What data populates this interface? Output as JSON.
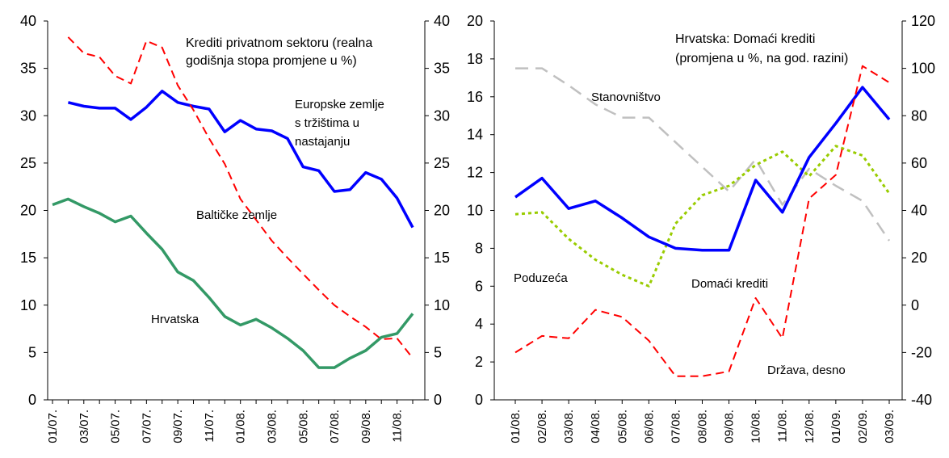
{
  "chart_data": [
    {
      "type": "line",
      "title_lines": [
        "Krediti privatnom sektoru (realna",
        "godišnja stopa promjene u %)"
      ],
      "categories": [
        "01/07.",
        "02/07.",
        "03/07.",
        "04/07.",
        "05/07.",
        "06/07.",
        "07/07.",
        "08/07.",
        "09/07.",
        "10/07.",
        "11/07.",
        "12/07.",
        "01/08.",
        "02/08.",
        "03/08.",
        "04/08.",
        "05/08.",
        "06/08.",
        "07/08.",
        "08/08.",
        "09/08.",
        "10/08.",
        "11/08.",
        "12/08."
      ],
      "x_tick_labels": [
        "01/07.",
        "03/07.",
        "05/07.",
        "07/07.",
        "09/07.",
        "11/07.",
        "01/08.",
        "03/08.",
        "05/08.",
        "07/08.",
        "09/08.",
        "11/08."
      ],
      "ylim": [
        0,
        40
      ],
      "y_ticks": [
        0,
        5,
        10,
        15,
        20,
        25,
        30,
        35,
        40
      ],
      "y_ticks_right": [
        0,
        5,
        10,
        15,
        20,
        25,
        30,
        35,
        40
      ],
      "series": [
        {
          "name": "Europske zemlje s tržištima u nastajanju",
          "label_lines": [
            "Europske zemlje",
            "s tržištima u",
            "nastajanju"
          ],
          "color": "#0000ff",
          "style": "solid",
          "values": [
            null,
            31.4,
            31.0,
            30.8,
            30.8,
            29.6,
            30.9,
            32.6,
            31.4,
            31.0,
            30.7,
            28.3,
            29.5,
            28.6,
            28.4,
            27.6,
            24.6,
            24.2,
            22.0,
            22.2,
            24.0,
            23.3,
            21.3,
            18.2
          ]
        },
        {
          "name": "Baltičke zemlje",
          "label_lines": [
            "Baltičke zemlje"
          ],
          "color": "#ff0000",
          "style": "dashed",
          "values": [
            null,
            38.3,
            36.6,
            36.2,
            34.2,
            33.4,
            37.9,
            37.2,
            33.2,
            30.6,
            27.6,
            24.9,
            21.2,
            19.0,
            16.8,
            15.0,
            13.3,
            11.6,
            10.0,
            8.8,
            7.7,
            6.4,
            6.5,
            4.4
          ]
        },
        {
          "name": "Hrvatska",
          "label_lines": [
            "Hrvatska"
          ],
          "color": "#339966",
          "style": "solid",
          "values": [
            20.6,
            21.2,
            20.4,
            19.7,
            18.8,
            19.4,
            17.6,
            15.9,
            13.5,
            12.6,
            10.8,
            8.8,
            7.9,
            8.5,
            7.6,
            6.5,
            5.2,
            3.4,
            3.4,
            4.4,
            5.2,
            6.6,
            7.0,
            9.1
          ]
        }
      ],
      "annotations": [
        "Europske zemlje s tržištima u nastajanju",
        "Baltičke zemlje",
        "Hrvatska"
      ]
    },
    {
      "type": "line",
      "title_lines": [
        "Hrvatska: Domaći krediti",
        "(promjena u %, na god. razini)"
      ],
      "categories": [
        "01/08.",
        "02/08.",
        "03/08.",
        "04/08.",
        "05/08.",
        "06/08.",
        "07/08.",
        "08/08.",
        "09/08.",
        "10/08.",
        "11/08.",
        "12/08.",
        "01/09.",
        "02/09.",
        "03/09."
      ],
      "x_tick_labels": [
        "01/08.",
        "02/08.",
        "03/08.",
        "04/08.",
        "05/08.",
        "06/08.",
        "07/08.",
        "08/08.",
        "09/08.",
        "10/08.",
        "11/08.",
        "12/08.",
        "01/09.",
        "02/09.",
        "03/09."
      ],
      "ylim": [
        0,
        20
      ],
      "y_ticks": [
        0,
        2,
        4,
        6,
        8,
        10,
        12,
        14,
        16,
        18,
        20
      ],
      "ylim_right": [
        -40,
        120
      ],
      "y_ticks_right": [
        -40,
        -20,
        0,
        20,
        40,
        60,
        80,
        100,
        120
      ],
      "series": [
        {
          "name": "Stanovništvo",
          "label_lines": [
            "Stanovništvo"
          ],
          "color": "#c0c0c0",
          "style": "dashed",
          "axis": "left",
          "values": [
            17.5,
            17.5,
            16.6,
            15.6,
            14.9,
            14.9,
            13.6,
            12.3,
            11.0,
            12.7,
            10.3,
            12.2,
            11.3,
            10.5,
            8.4
          ]
        },
        {
          "name": "Poduzeća",
          "label_lines": [
            "Poduzeća"
          ],
          "color": "#99cc00",
          "style": "dotted",
          "axis": "left",
          "values": [
            9.8,
            9.9,
            8.5,
            7.4,
            6.6,
            6.0,
            9.3,
            10.8,
            11.3,
            12.4,
            13.1,
            11.8,
            13.4,
            12.9,
            10.9
          ]
        },
        {
          "name": "Domaći krediti",
          "label_lines": [
            "Domaći krediti"
          ],
          "color": "#0000ff",
          "style": "solid",
          "axis": "left",
          "values": [
            10.7,
            11.7,
            10.1,
            10.5,
            9.6,
            8.6,
            8.0,
            7.9,
            7.9,
            11.6,
            9.9,
            12.8,
            14.6,
            16.5,
            14.8
          ]
        },
        {
          "name": "Država, desno",
          "label_lines": [
            "Država, desno"
          ],
          "color": "#ff0000",
          "style": "dashed",
          "axis": "right",
          "values": [
            -20,
            -13,
            -14,
            -2,
            -5,
            -15,
            -30,
            -30,
            -28,
            3,
            -14,
            45,
            55,
            101,
            94
          ]
        }
      ],
      "annotations": [
        "Stanovništvo",
        "Poduzeća",
        "Domaći krediti",
        "Država, desno"
      ]
    }
  ]
}
